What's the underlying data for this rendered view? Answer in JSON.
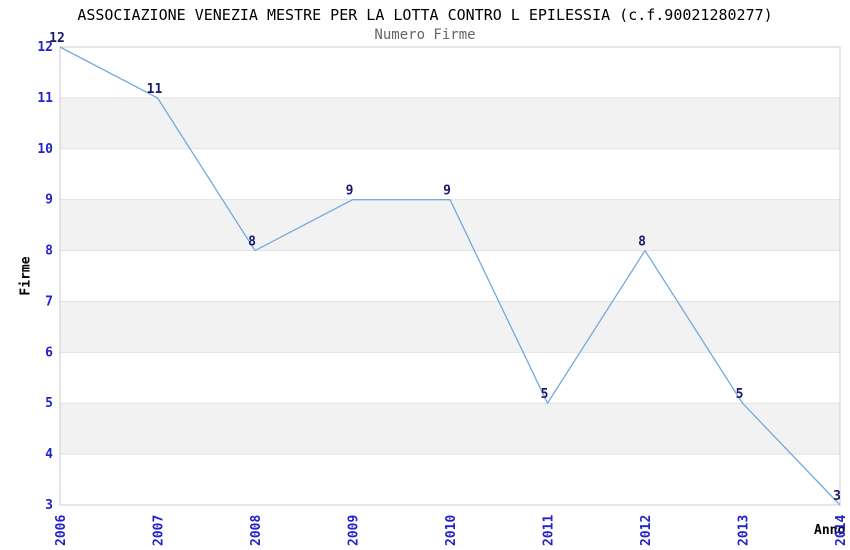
{
  "chart_data": {
    "type": "line",
    "title": "ASSOCIAZIONE VENEZIA MESTRE PER LA LOTTA CONTRO L EPILESSIA (c.f.90021280277)",
    "subtitle": "Numero Firme",
    "xlabel": "Anno",
    "ylabel": "Firme",
    "categories": [
      "2006",
      "2007",
      "2008",
      "2009",
      "2010",
      "2011",
      "2012",
      "2013",
      "2014"
    ],
    "values": [
      12,
      11,
      8,
      9,
      9,
      5,
      8,
      5,
      3
    ],
    "point_labels": [
      "12",
      "11",
      "8",
      "9",
      "9",
      "5",
      "8",
      "5",
      "3"
    ],
    "ylim": [
      3,
      12
    ],
    "yticks": [
      3,
      4,
      5,
      6,
      7,
      8,
      9,
      10,
      11,
      12
    ],
    "grid": "horizontal",
    "background_bands": "alternating gray stripes on even values",
    "legend": "none",
    "colors": {
      "line": "#74a9dd",
      "tick_label": "#2222cc",
      "point_label": "#191970",
      "band": "#f2f2f2",
      "grid": "#e2e2e2",
      "border": "#cccccc",
      "title": "#000000",
      "subtitle": "#666666"
    }
  }
}
